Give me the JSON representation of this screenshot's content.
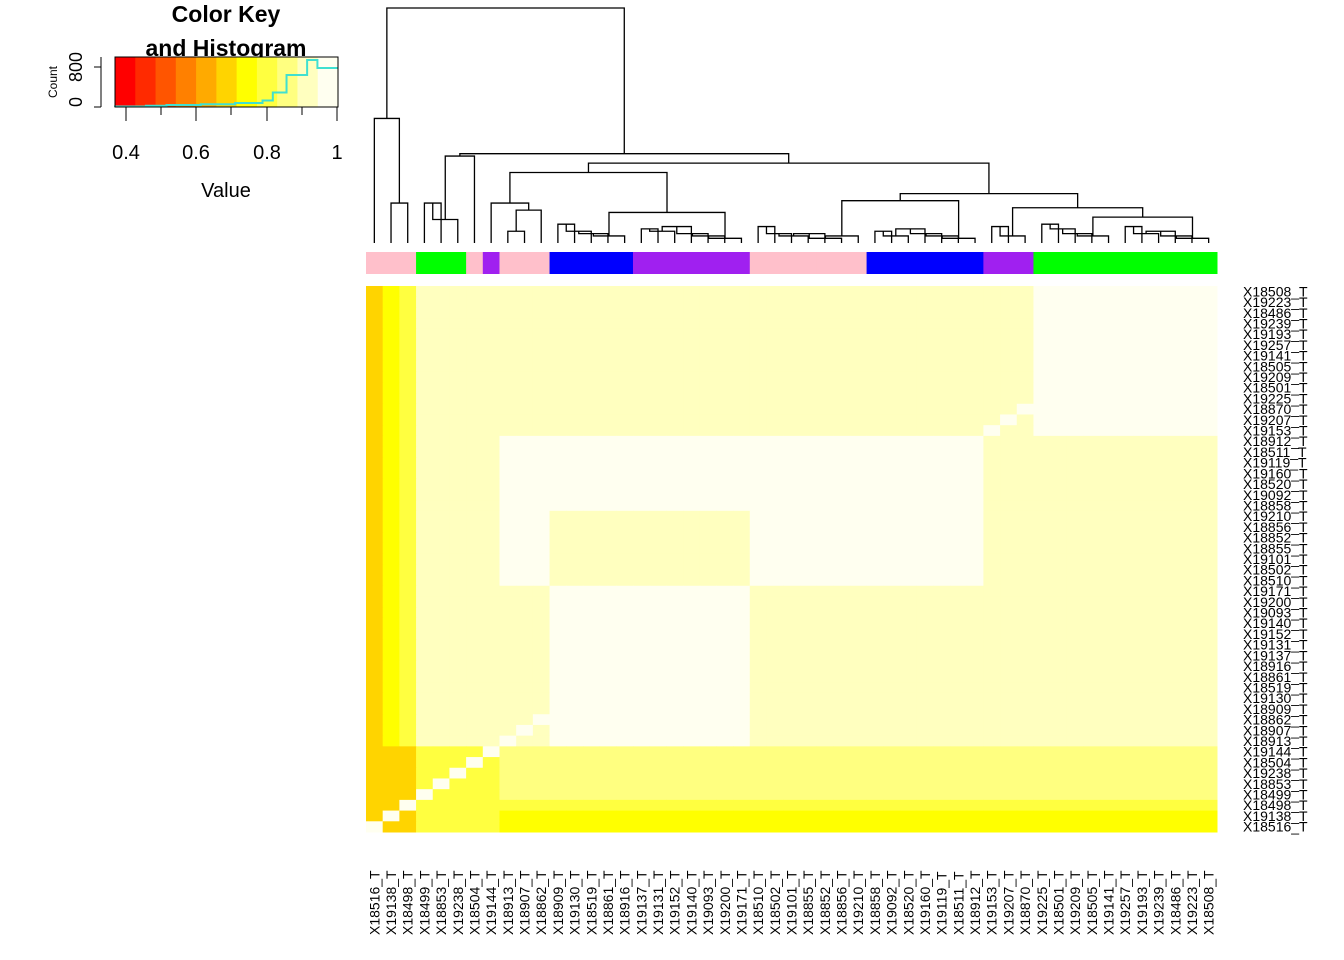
{
  "key": {
    "title_line1": "Color Key",
    "title_line2": "and Histogram",
    "xlabel": "Value",
    "ylabel": "Count",
    "x_ticks": [
      "0.4",
      "0.6",
      "0.8",
      "1"
    ],
    "y_ticks": [
      "0",
      "800"
    ],
    "x_range": [
      0.35,
      1.0
    ],
    "y_range": [
      0,
      1000
    ],
    "histogram_line_color": "#40E0D0",
    "histogram": [
      {
        "from": 0.35,
        "to": 0.44,
        "count": 10
      },
      {
        "from": 0.44,
        "to": 0.5,
        "count": 25
      },
      {
        "from": 0.5,
        "to": 0.6,
        "count": 40
      },
      {
        "from": 0.6,
        "to": 0.7,
        "count": 55
      },
      {
        "from": 0.7,
        "to": 0.78,
        "count": 80
      },
      {
        "from": 0.78,
        "to": 0.81,
        "count": 130
      },
      {
        "from": 0.81,
        "to": 0.85,
        "count": 290
      },
      {
        "from": 0.85,
        "to": 0.88,
        "count": 640
      },
      {
        "from": 0.88,
        "to": 0.91,
        "count": 640
      },
      {
        "from": 0.91,
        "to": 0.94,
        "count": 940
      },
      {
        "from": 0.94,
        "to": 0.97,
        "count": 780
      },
      {
        "from": 0.97,
        "to": 1.0,
        "count": 780
      }
    ]
  },
  "chart_data": {
    "type": "heatmap",
    "value_range": [
      0.35,
      1.0
    ],
    "palette": [
      "#FF0000",
      "#FF2A00",
      "#FF5500",
      "#FF8000",
      "#FFAA00",
      "#FFD400",
      "#FFFF00",
      "#FFFF40",
      "#FFFF80",
      "#FFFFBF",
      "#FFFFF0"
    ],
    "group_colors": {
      "pink": "#FFC0CB",
      "green": "#00FF00",
      "purple": "#A020F0",
      "blue": "#0000FF"
    },
    "columns": [
      {
        "label": "X18516_T",
        "group": "pink"
      },
      {
        "label": "X19138_T",
        "group": "pink"
      },
      {
        "label": "X18498_T",
        "group": "pink"
      },
      {
        "label": "X18499_T",
        "group": "green"
      },
      {
        "label": "X18853_T",
        "group": "green"
      },
      {
        "label": "X19238_T",
        "group": "green"
      },
      {
        "label": "X18504_T",
        "group": "pink"
      },
      {
        "label": "X19144_T",
        "group": "purple"
      },
      {
        "label": "X18913_T",
        "group": "pink"
      },
      {
        "label": "X18907_T",
        "group": "pink"
      },
      {
        "label": "X18862_T",
        "group": "pink"
      },
      {
        "label": "X18909_T",
        "group": "blue"
      },
      {
        "label": "X19130_T",
        "group": "blue"
      },
      {
        "label": "X18519_T",
        "group": "blue"
      },
      {
        "label": "X18861_T",
        "group": "blue"
      },
      {
        "label": "X18916_T",
        "group": "blue"
      },
      {
        "label": "X19137_T",
        "group": "purple"
      },
      {
        "label": "X19131_T",
        "group": "purple"
      },
      {
        "label": "X19152_T",
        "group": "purple"
      },
      {
        "label": "X19140_T",
        "group": "purple"
      },
      {
        "label": "X19093_T",
        "group": "purple"
      },
      {
        "label": "X19200_T",
        "group": "purple"
      },
      {
        "label": "X19171_T",
        "group": "purple"
      },
      {
        "label": "X18510_T",
        "group": "pink"
      },
      {
        "label": "X18502_T",
        "group": "pink"
      },
      {
        "label": "X19101_T",
        "group": "pink"
      },
      {
        "label": "X18855_T",
        "group": "pink"
      },
      {
        "label": "X18852_T",
        "group": "pink"
      },
      {
        "label": "X18856_T",
        "group": "pink"
      },
      {
        "label": "X19210_T",
        "group": "pink"
      },
      {
        "label": "X18858_T",
        "group": "blue"
      },
      {
        "label": "X19092_T",
        "group": "blue"
      },
      {
        "label": "X18520_T",
        "group": "blue"
      },
      {
        "label": "X19160_T",
        "group": "blue"
      },
      {
        "label": "X19119_T",
        "group": "blue"
      },
      {
        "label": "X18511_T",
        "group": "blue"
      },
      {
        "label": "X18912_T",
        "group": "blue"
      },
      {
        "label": "X19153_T",
        "group": "purple"
      },
      {
        "label": "X19207_T",
        "group": "purple"
      },
      {
        "label": "X18870_T",
        "group": "purple"
      },
      {
        "label": "X19225_T",
        "group": "green"
      },
      {
        "label": "X18501_T",
        "group": "green"
      },
      {
        "label": "X19209_T",
        "group": "green"
      },
      {
        "label": "X18505_T",
        "group": "green"
      },
      {
        "label": "X19141_T",
        "group": "green"
      },
      {
        "label": "X19257_T",
        "group": "green"
      },
      {
        "label": "X19193_T",
        "group": "green"
      },
      {
        "label": "X19239_T",
        "group": "green"
      },
      {
        "label": "X18486_T",
        "group": "green"
      },
      {
        "label": "X19223_T",
        "group": "green"
      },
      {
        "label": "X18508_T",
        "group": "green"
      }
    ],
    "row_labels": [
      "X18508_T",
      "X19223_T",
      "X18486_T",
      "X19239_T",
      "X19193_T",
      "X19257_T",
      "X19141_T",
      "X18505_T",
      "X19209_T",
      "X18501_T",
      "X19225_T",
      "X18870_T",
      "X19207_T",
      "X19153_T",
      "X18912_T",
      "X18511_T",
      "X19119_T",
      "X19160_T",
      "X18520_T",
      "X19092_T",
      "X18858_T",
      "X19210_T",
      "X18856_T",
      "X18852_T",
      "X18855_T",
      "X19101_T",
      "X18502_T",
      "X18510_T",
      "X19171_T",
      "X19200_T",
      "X19093_T",
      "X19140_T",
      "X19152_T",
      "X19131_T",
      "X19137_T",
      "X18916_T",
      "X18861_T",
      "X18519_T",
      "X19130_T",
      "X18909_T",
      "X18862_T",
      "X18907_T",
      "X18913_T",
      "X19144_T",
      "X18504_T",
      "X19238_T",
      "X18853_T",
      "X18499_T",
      "X18498_T",
      "X19138_T",
      "X18516_T"
    ],
    "blocks": [
      {
        "rows": [
          0,
          13
        ],
        "cols": [
          8,
          22
        ],
        "value": 0.93
      },
      {
        "rows": [
          0,
          13
        ],
        "cols": [
          23,
          39
        ],
        "value": 0.91
      },
      {
        "rows": [
          0,
          13
        ],
        "cols": [
          40,
          50
        ],
        "value": 0.98
      },
      {
        "rows": [
          14,
          20
        ],
        "cols": [
          8,
          22
        ],
        "value": 0.95
      },
      {
        "rows": [
          14,
          20
        ],
        "cols": [
          23,
          36
        ],
        "value": 0.98
      },
      {
        "rows": [
          14,
          20
        ],
        "cols": [
          37,
          39
        ],
        "value": 0.92
      },
      {
        "rows": [
          14,
          20
        ],
        "cols": [
          40,
          50
        ],
        "value": 0.9
      },
      {
        "rows": [
          21,
          27
        ],
        "cols": [
          8,
          10
        ],
        "value": 0.98
      },
      {
        "rows": [
          21,
          27
        ],
        "cols": [
          11,
          22
        ],
        "value": 0.91
      },
      {
        "rows": [
          21,
          27
        ],
        "cols": [
          23,
          36
        ],
        "value": 0.98
      },
      {
        "rows": [
          21,
          27
        ],
        "cols": [
          37,
          50
        ],
        "value": 0.89
      },
      {
        "rows": [
          28,
          42
        ],
        "cols": [
          8,
          10
        ],
        "value": 0.93
      },
      {
        "rows": [
          28,
          42
        ],
        "cols": [
          11,
          22
        ],
        "value": 0.98
      },
      {
        "rows": [
          28,
          42
        ],
        "cols": [
          23,
          39
        ],
        "value": 0.92
      },
      {
        "rows": [
          28,
          42
        ],
        "cols": [
          40,
          50
        ],
        "value": 0.93
      },
      {
        "rows": [
          43,
          47
        ],
        "cols": [
          8,
          50
        ],
        "value": 0.87
      },
      {
        "rows": [
          48,
          48
        ],
        "cols": [
          8,
          50
        ],
        "value": 0.8
      },
      {
        "rows": [
          49,
          50
        ],
        "cols": [
          8,
          50
        ],
        "value": 0.74
      },
      {
        "rows": [
          0,
          42
        ],
        "cols": [
          0,
          0
        ],
        "value": 0.68
      },
      {
        "rows": [
          0,
          42
        ],
        "cols": [
          1,
          1
        ],
        "value": 0.75
      },
      {
        "rows": [
          0,
          42
        ],
        "cols": [
          2,
          2
        ],
        "value": 0.8
      },
      {
        "rows": [
          0,
          42
        ],
        "cols": [
          3,
          7
        ],
        "value": 0.89
      },
      {
        "rows": [
          43,
          50
        ],
        "cols": [
          0,
          2
        ],
        "value": 0.7
      },
      {
        "rows": [
          43,
          50
        ],
        "cols": [
          3,
          7
        ],
        "value": 0.8
      }
    ]
  }
}
